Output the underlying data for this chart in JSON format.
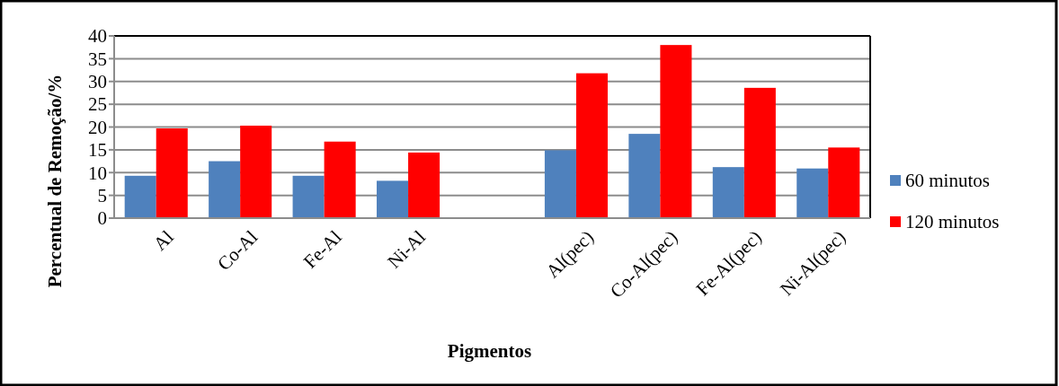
{
  "chart_data": {
    "type": "bar",
    "xlabel": "Pigmentos",
    "ylabel": "Percentual de Remoção/%",
    "categories": [
      "Al",
      "Co-Al",
      "Fe-Al",
      "Ni-Al",
      null,
      "Al(pec)",
      "Co-Al(pec)",
      "Fe-Al(pec)",
      "Ni-Al(pec)"
    ],
    "series": [
      {
        "name": "60 minutos",
        "color": "#4f81bd",
        "values": [
          9.3,
          12.5,
          9.3,
          8.2,
          null,
          14.9,
          18.5,
          11.2,
          10.9
        ]
      },
      {
        "name": "120 minutos",
        "color": "#ff0000",
        "values": [
          19.7,
          20.3,
          16.8,
          14.4,
          null,
          31.8,
          38.0,
          28.6,
          15.5
        ]
      }
    ],
    "ylim": [
      0,
      40
    ],
    "yticks": [
      0,
      5,
      10,
      15,
      20,
      25,
      30,
      35,
      40
    ],
    "grid": "y",
    "legend": "right"
  }
}
